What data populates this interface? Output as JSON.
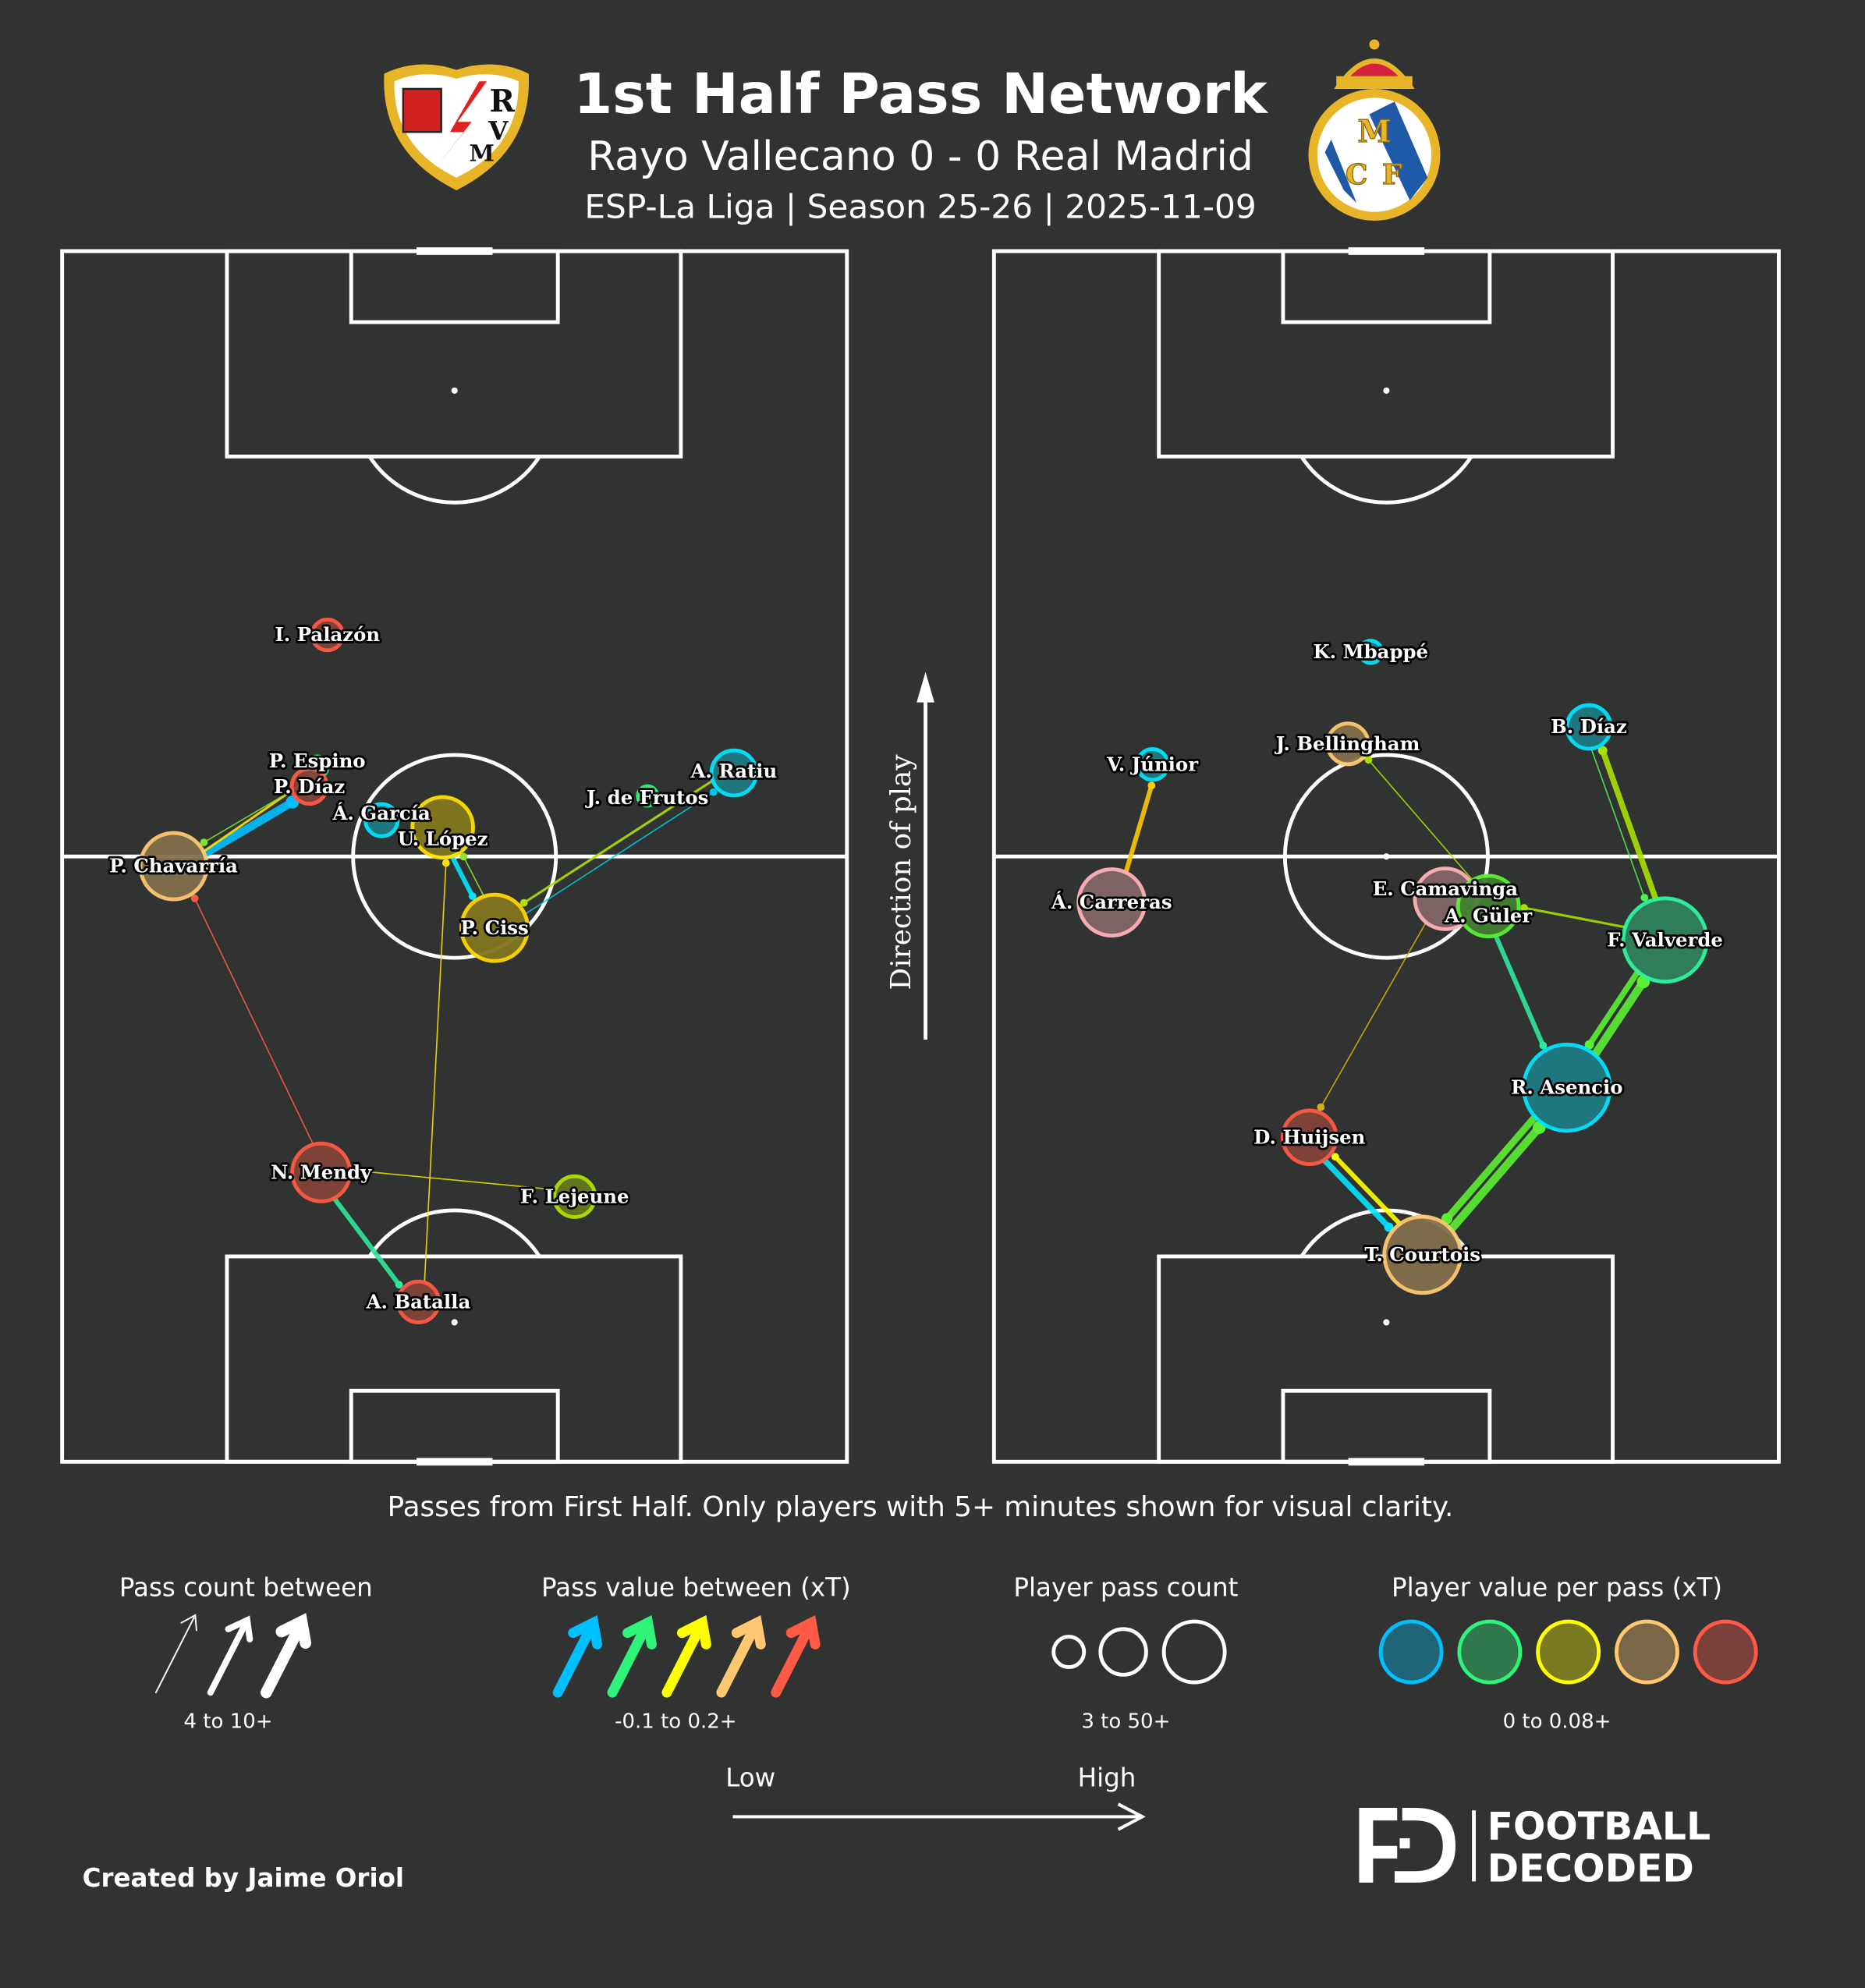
{
  "header": {
    "title": "1st Half Pass Network",
    "subtitle": "Rayo Vallecano 0 - 0 Real Madrid",
    "meta": "ESP-La Liga | Season 25-26 | 2025-11-09",
    "home_logo_text": "RVM",
    "away_logo_text": "MCF"
  },
  "direction_label": "Direction of play",
  "footnote": "Passes from First Half. Only players with 5+ minutes shown for visual clarity.",
  "legend": {
    "pass_count": {
      "title": "Pass count between",
      "range": "4 to 10+"
    },
    "pass_value": {
      "title": "Pass value between (xT)",
      "range": "-0.1 to 0.2+",
      "colors": [
        "#00bfff",
        "#2ef57a",
        "#ffff00",
        "#ffc870",
        "#ff5a45"
      ]
    },
    "player_count": {
      "title": "Player pass count",
      "range": "3 to 50+"
    },
    "player_value": {
      "title": "Player value per pass (xT)",
      "range": "0 to 0.08+",
      "colors": [
        "#00bfff",
        "#2ef57a",
        "#ffff00",
        "#ffc870",
        "#ff5a45"
      ]
    },
    "low": "Low",
    "high": "High"
  },
  "credit": "Created by Jaime Oriol",
  "brand": {
    "line1": "FOOTBALL",
    "line2": "DECODED"
  },
  "chart_data": [
    {
      "type": "pass-network",
      "team": "Rayo Vallecano",
      "pitch_units": "0-100 width (x) and 0-100 length (y, direction of play upward)",
      "players": [
        {
          "name": "I. Palazón",
          "x": 33.8,
          "y": 68.3,
          "passes": 11,
          "color": "#ff5a45"
        },
        {
          "name": "P. Espino",
          "x": 32.5,
          "y": 57.4,
          "passes": 4,
          "color": "#2ef57a"
        },
        {
          "name": "P. Díaz",
          "x": 31.5,
          "y": 55.8,
          "passes": 14,
          "color": "#ff5a45"
        },
        {
          "name": "Á. García",
          "x": 40.7,
          "y": 53.0,
          "passes": 12,
          "color": "#00e5ff"
        },
        {
          "name": "U. López",
          "x": 48.5,
          "y": 52.4,
          "passes": 32,
          "color": "#ffe000"
        },
        {
          "name": "A. Ratiu",
          "x": 85.6,
          "y": 56.9,
          "passes": 21,
          "color": "#00e5ff"
        },
        {
          "name": "J. de Frutos",
          "x": 74.6,
          "y": 55.0,
          "passes": 3,
          "color": "#2ef57a"
        },
        {
          "name": "P. Chavarría",
          "x": 14.2,
          "y": 49.2,
          "passes": 36,
          "color": "#ffc870"
        },
        {
          "name": "P. Ciss",
          "x": 55.1,
          "y": 44.1,
          "passes": 36,
          "color": "#ffd700"
        },
        {
          "name": "N. Mendy",
          "x": 33.0,
          "y": 23.9,
          "passes": 30,
          "color": "#ff5a45"
        },
        {
          "name": "F. Lejeune",
          "x": 65.3,
          "y": 21.9,
          "passes": 18,
          "color": "#b0e000"
        },
        {
          "name": "A. Batalla",
          "x": 45.4,
          "y": 13.2,
          "passes": 18,
          "color": "#ff5a45"
        }
      ],
      "edges": [
        {
          "from": "P. Chavarría",
          "to": "P. Díaz",
          "count": 10,
          "color": "#00bfff"
        },
        {
          "from": "P. Chavarría",
          "to": "P. Espino",
          "count": 5,
          "color": "#ffe000"
        },
        {
          "from": "P. Díaz",
          "to": "P. Chavarría",
          "count": 4,
          "color": "#7be52b"
        },
        {
          "from": "U. López",
          "to": "P. Ciss",
          "count": 7,
          "color": "#00e5ff"
        },
        {
          "from": "P. Ciss",
          "to": "U. López",
          "count": 4,
          "color": "#8ee52b"
        },
        {
          "from": "A. Ratiu",
          "to": "P. Ciss",
          "count": 5,
          "color": "#b0e000"
        },
        {
          "from": "P. Ciss",
          "to": "A. Ratiu",
          "count": 4,
          "color": "#00c8e0"
        },
        {
          "from": "N. Mendy",
          "to": "P. Chavarría",
          "count": 4,
          "color": "#ff5a45"
        },
        {
          "from": "F. Lejeune",
          "to": "N. Mendy",
          "count": 4,
          "color": "#e6e000"
        },
        {
          "from": "A. Batalla",
          "to": "U. López",
          "count": 4,
          "color": "#ffe000"
        },
        {
          "from": "N. Mendy",
          "to": "A. Batalla",
          "count": 7,
          "color": "#2ee89a"
        }
      ]
    },
    {
      "type": "pass-network",
      "team": "Real Madrid",
      "pitch_units": "0-100 width (x) and 0-100 length (y, direction of play upward)",
      "players": [
        {
          "name": "K. Mbappé",
          "x": 48.0,
          "y": 66.9,
          "passes": 5,
          "color": "#00e5ff"
        },
        {
          "name": "J. Bellingham",
          "x": 45.1,
          "y": 59.3,
          "passes": 18,
          "color": "#ffc870"
        },
        {
          "name": "V. Júnior",
          "x": 20.2,
          "y": 57.6,
          "passes": 11,
          "color": "#00e5ff"
        },
        {
          "name": "B. Díaz",
          "x": 75.8,
          "y": 60.7,
          "passes": 20,
          "color": "#00e5ff"
        },
        {
          "name": "Á. Carreras",
          "x": 15.0,
          "y": 46.2,
          "passes": 36,
          "color": "#ffb3b8"
        },
        {
          "name": "E. Camavinga",
          "x": 57.5,
          "y": 46.5,
          "passes": 32,
          "color": "#ffb3b8"
        },
        {
          "name": "A. Güler",
          "x": 63.0,
          "y": 45.9,
          "passes": 32,
          "color": "#5cf032"
        },
        {
          "name": "F. Valverde",
          "x": 85.5,
          "y": 43.1,
          "passes": 48,
          "color": "#2ef5a0"
        },
        {
          "name": "R. Asencio",
          "x": 73.0,
          "y": 30.9,
          "passes": 50,
          "color": "#00e5ff"
        },
        {
          "name": "D. Huijsen",
          "x": 40.2,
          "y": 26.8,
          "passes": 27,
          "color": "#ff5a45"
        },
        {
          "name": "T. Courtois",
          "x": 54.6,
          "y": 17.1,
          "passes": 43,
          "color": "#ffc870"
        }
      ],
      "edges": [
        {
          "from": "Á. Carreras",
          "to": "V. Júnior",
          "count": 7,
          "color": "#ffc800"
        },
        {
          "from": "A. Güler",
          "to": "J. Bellingham",
          "count": 4,
          "color": "#a8e000"
        },
        {
          "from": "B. Díaz",
          "to": "F. Valverde",
          "count": 4,
          "color": "#4cf050"
        },
        {
          "from": "F. Valverde",
          "to": "B. Díaz",
          "count": 8,
          "color": "#a8e000"
        },
        {
          "from": "F. Valverde",
          "to": "A. Güler",
          "count": 5,
          "color": "#a8e000"
        },
        {
          "from": "E. Camavinga",
          "to": "D. Huijsen",
          "count": 4,
          "color": "#d4b000"
        },
        {
          "from": "A. Güler",
          "to": "R. Asencio",
          "count": 7,
          "color": "#2ee8a0"
        },
        {
          "from": "R. Asencio",
          "to": "F. Valverde",
          "count": 10,
          "color": "#5cf032"
        },
        {
          "from": "F. Valverde",
          "to": "R. Asencio",
          "count": 8,
          "color": "#5cf032"
        },
        {
          "from": "T. Courtois",
          "to": "R. Asencio",
          "count": 10,
          "color": "#5cf032"
        },
        {
          "from": "R. Asencio",
          "to": "T. Courtois",
          "count": 9,
          "color": "#5cf032"
        },
        {
          "from": "D. Huijsen",
          "to": "T. Courtois",
          "count": 8,
          "color": "#00e5ff"
        },
        {
          "from": "T. Courtois",
          "to": "D. Huijsen",
          "count": 7,
          "color": "#ffff00"
        }
      ]
    }
  ]
}
